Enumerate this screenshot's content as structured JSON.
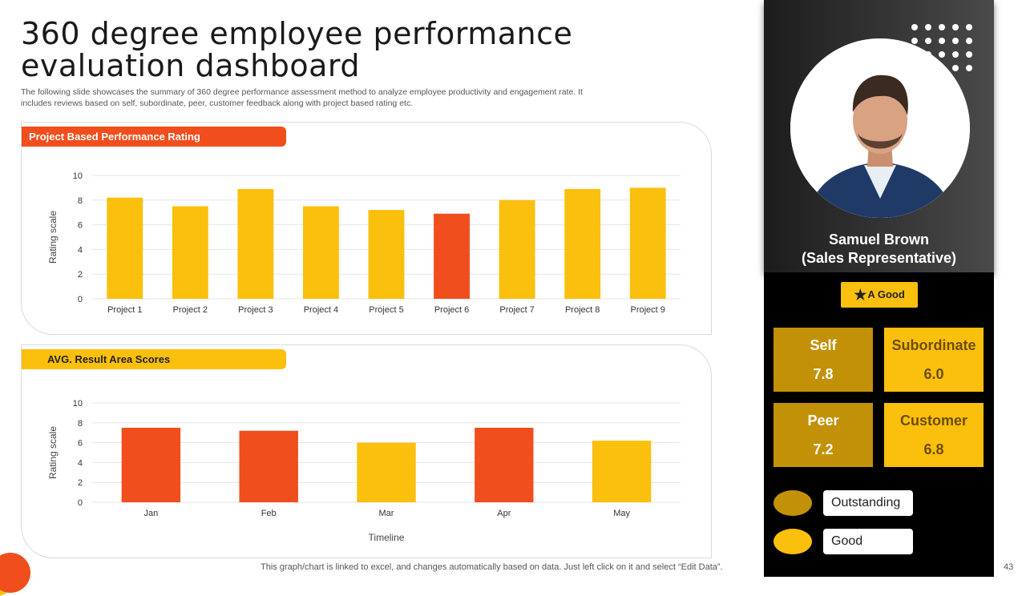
{
  "page": {
    "title": "360 degree employee performance evaluation dashboard",
    "subtitle": "The following slide showcases the summary of 360 degree performance assessment method to analyze employee productivity and engagement rate. It includes reviews based on self, subordinate, peer, customer feedback along with project based rating etc.",
    "footer_note": "This graph/chart is linked to excel,  and changes automatically based on data. Just left click on it and select “Edit Data”.",
    "page_number": "43"
  },
  "colors": {
    "orange": "#f04e1c",
    "yellow": "#fbbf0d",
    "dark_gold": "#c39107"
  },
  "chart_data": [
    {
      "type": "bar",
      "title": "Project Based Performance Rating",
      "categories": [
        "Project 1",
        "Project 2",
        "Project 3",
        "Project 4",
        "Project 5",
        "Project 6",
        "Project 7",
        "Project 8",
        "Project 9"
      ],
      "values": [
        8.2,
        7.5,
        8.9,
        7.5,
        7.2,
        6.9,
        8.0,
        8.9,
        9.0
      ],
      "highlight": [
        false,
        false,
        false,
        false,
        false,
        true,
        false,
        false,
        false
      ],
      "xlabel": "",
      "ylabel": "Rating scale",
      "ylim": [
        0,
        10
      ],
      "yticks": [
        0,
        2,
        4,
        6,
        8,
        10
      ]
    },
    {
      "type": "bar",
      "title": "AVG. Result Area Scores",
      "categories": [
        "Jan",
        "Feb",
        "Mar",
        "Apr",
        "May"
      ],
      "values": [
        7.5,
        7.2,
        6.0,
        7.5,
        6.2
      ],
      "highlight": [
        true,
        true,
        false,
        true,
        false
      ],
      "xlabel": "Timeline",
      "ylabel": "Rating scale",
      "ylim": [
        0,
        10
      ],
      "yticks": [
        0,
        2,
        4,
        6,
        8,
        10
      ]
    }
  ],
  "profile": {
    "name": "Samuel Brown",
    "role": "(Sales Representative)",
    "badge": "A Good",
    "badge_icon": "star-icon"
  },
  "scores": [
    {
      "label": "Self",
      "value": "7.8"
    },
    {
      "label": "Subordinate",
      "value": "6.0"
    },
    {
      "label": "Peer",
      "value": "7.2"
    },
    {
      "label": "Customer",
      "value": "6.8"
    }
  ],
  "legend": [
    {
      "label": "Outstanding",
      "color": "#c39107"
    },
    {
      "label": "Good",
      "color": "#fbbf0d"
    }
  ]
}
